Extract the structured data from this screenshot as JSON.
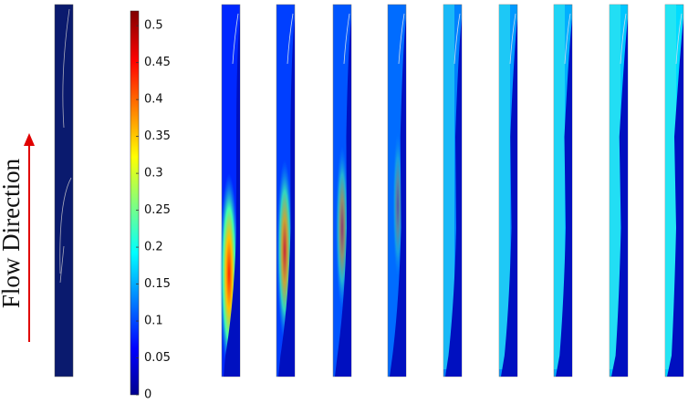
{
  "label": "Flow Direction",
  "colorbar": {
    "range": [
      0,
      0.52
    ],
    "ticks": [
      0,
      0.05,
      0.1,
      0.15,
      0.2,
      0.25,
      0.3,
      0.35,
      0.4,
      0.45,
      0.5
    ]
  }
}
